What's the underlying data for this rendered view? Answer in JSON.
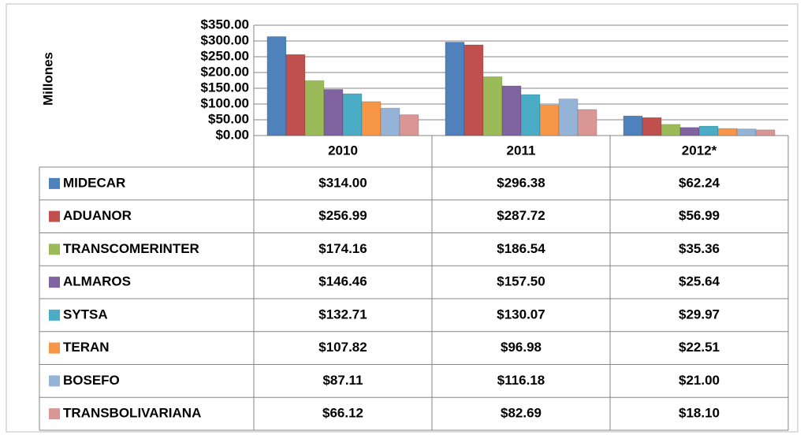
{
  "chart_data": {
    "type": "bar",
    "y_label": "Millones",
    "categories": [
      "2010",
      "2011",
      "2012*"
    ],
    "ylim": [
      0,
      350
    ],
    "yticks": [
      {
        "value": 0,
        "label": "$0.00"
      },
      {
        "value": 50,
        "label": "$50.00"
      },
      {
        "value": 100,
        "label": "$100.00"
      },
      {
        "value": 150,
        "label": "$150.00"
      },
      {
        "value": 200,
        "label": "$200.00"
      },
      {
        "value": 250,
        "label": "$250.00"
      },
      {
        "value": 300,
        "label": "$300.00"
      },
      {
        "value": 350,
        "label": "$350.00"
      }
    ],
    "grid": true,
    "series": [
      {
        "name": "MIDECAR",
        "color": "#4f81bd",
        "values": [
          314.0,
          296.38,
          62.24
        ],
        "value_labels": [
          "$314.00",
          "$296.38",
          "$62.24"
        ]
      },
      {
        "name": "ADUANOR",
        "color": "#c0504d",
        "values": [
          256.99,
          287.72,
          56.99
        ],
        "value_labels": [
          "$256.99",
          "$287.72",
          "$56.99"
        ]
      },
      {
        "name": "TRANSCOMERINTER",
        "color": "#9bbb59",
        "values": [
          174.16,
          186.54,
          35.36
        ],
        "value_labels": [
          "$174.16",
          "$186.54",
          "$35.36"
        ]
      },
      {
        "name": "ALMAROS",
        "color": "#8064a2",
        "values": [
          146.46,
          157.5,
          25.64
        ],
        "value_labels": [
          "$146.46",
          "$157.50",
          "$25.64"
        ]
      },
      {
        "name": "SYTSA",
        "color": "#4bacc6",
        "values": [
          132.71,
          130.07,
          29.97
        ],
        "value_labels": [
          "$132.71",
          "$130.07",
          "$29.97"
        ]
      },
      {
        "name": "TERAN",
        "color": "#f79646",
        "values": [
          107.82,
          96.98,
          22.51
        ],
        "value_labels": [
          "$107.82",
          "$96.98",
          "$22.51"
        ]
      },
      {
        "name": "BOSEFO",
        "color": "#95b3d7",
        "values": [
          87.11,
          116.18,
          21.0
        ],
        "value_labels": [
          "$87.11",
          "$116.18",
          "$21.00"
        ]
      },
      {
        "name": "TRANSBOLIVARIANA",
        "color": "#d99694",
        "values": [
          66.12,
          82.69,
          18.1
        ],
        "value_labels": [
          "$66.12",
          "$82.69",
          "$18.10"
        ]
      }
    ]
  }
}
